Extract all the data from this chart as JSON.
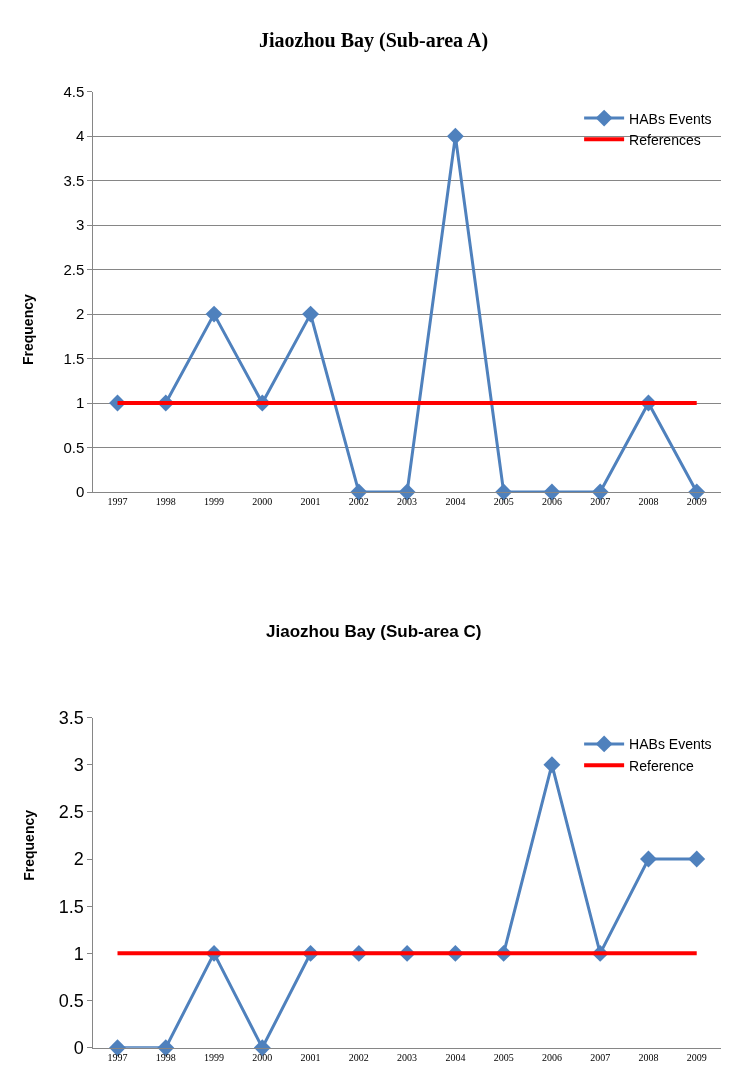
{
  "chart_data": [
    {
      "type": "line",
      "title": "Jiaozhou Bay (Sub-area A)",
      "ylabel": "Frequency",
      "categories": [
        "1997",
        "1998",
        "1999",
        "2000",
        "2001",
        "2002",
        "2003",
        "2004",
        "2005",
        "2006",
        "2007",
        "2008",
        "2009"
      ],
      "series": [
        {
          "name": "HABs Events",
          "color": "#4f81bd",
          "marker": "diamond",
          "values": [
            1,
            1,
            2,
            1,
            2,
            0,
            0,
            4,
            0,
            0,
            0,
            1,
            0
          ]
        },
        {
          "name": "References",
          "color": "#ff0000",
          "marker": "none",
          "values": [
            1,
            1,
            1,
            1,
            1,
            1,
            1,
            1,
            1,
            1,
            1,
            1,
            1
          ]
        }
      ],
      "ylim": [
        0,
        4.5
      ],
      "yticks": [
        0,
        0.5,
        1,
        1.5,
        2,
        2.5,
        3,
        3.5,
        4,
        4.5
      ],
      "grid": "y",
      "legend": "top right"
    },
    {
      "type": "line",
      "title": "Jiaozhou Bay (Sub-area C)",
      "ylabel": "Frequency",
      "categories": [
        "1997",
        "1998",
        "1999",
        "2000",
        "2001",
        "2002",
        "2003",
        "2004",
        "2005",
        "2006",
        "2007",
        "2008",
        "2009"
      ],
      "series": [
        {
          "name": "HABs Events",
          "color": "#4f81bd",
          "marker": "diamond",
          "values": [
            0,
            0,
            1,
            0,
            1,
            1,
            1,
            1,
            1,
            3,
            1,
            2,
            2
          ]
        },
        {
          "name": "Reference",
          "color": "#ff0000",
          "marker": "none",
          "values": [
            1,
            1,
            1,
            1,
            1,
            1,
            1,
            1,
            1,
            1,
            1,
            1,
            1
          ]
        }
      ],
      "ylim": [
        0,
        3.5
      ],
      "yticks": [
        0,
        0.5,
        1,
        1.5,
        2,
        2.5,
        3,
        3.5
      ],
      "grid": false,
      "legend": "top right"
    }
  ]
}
